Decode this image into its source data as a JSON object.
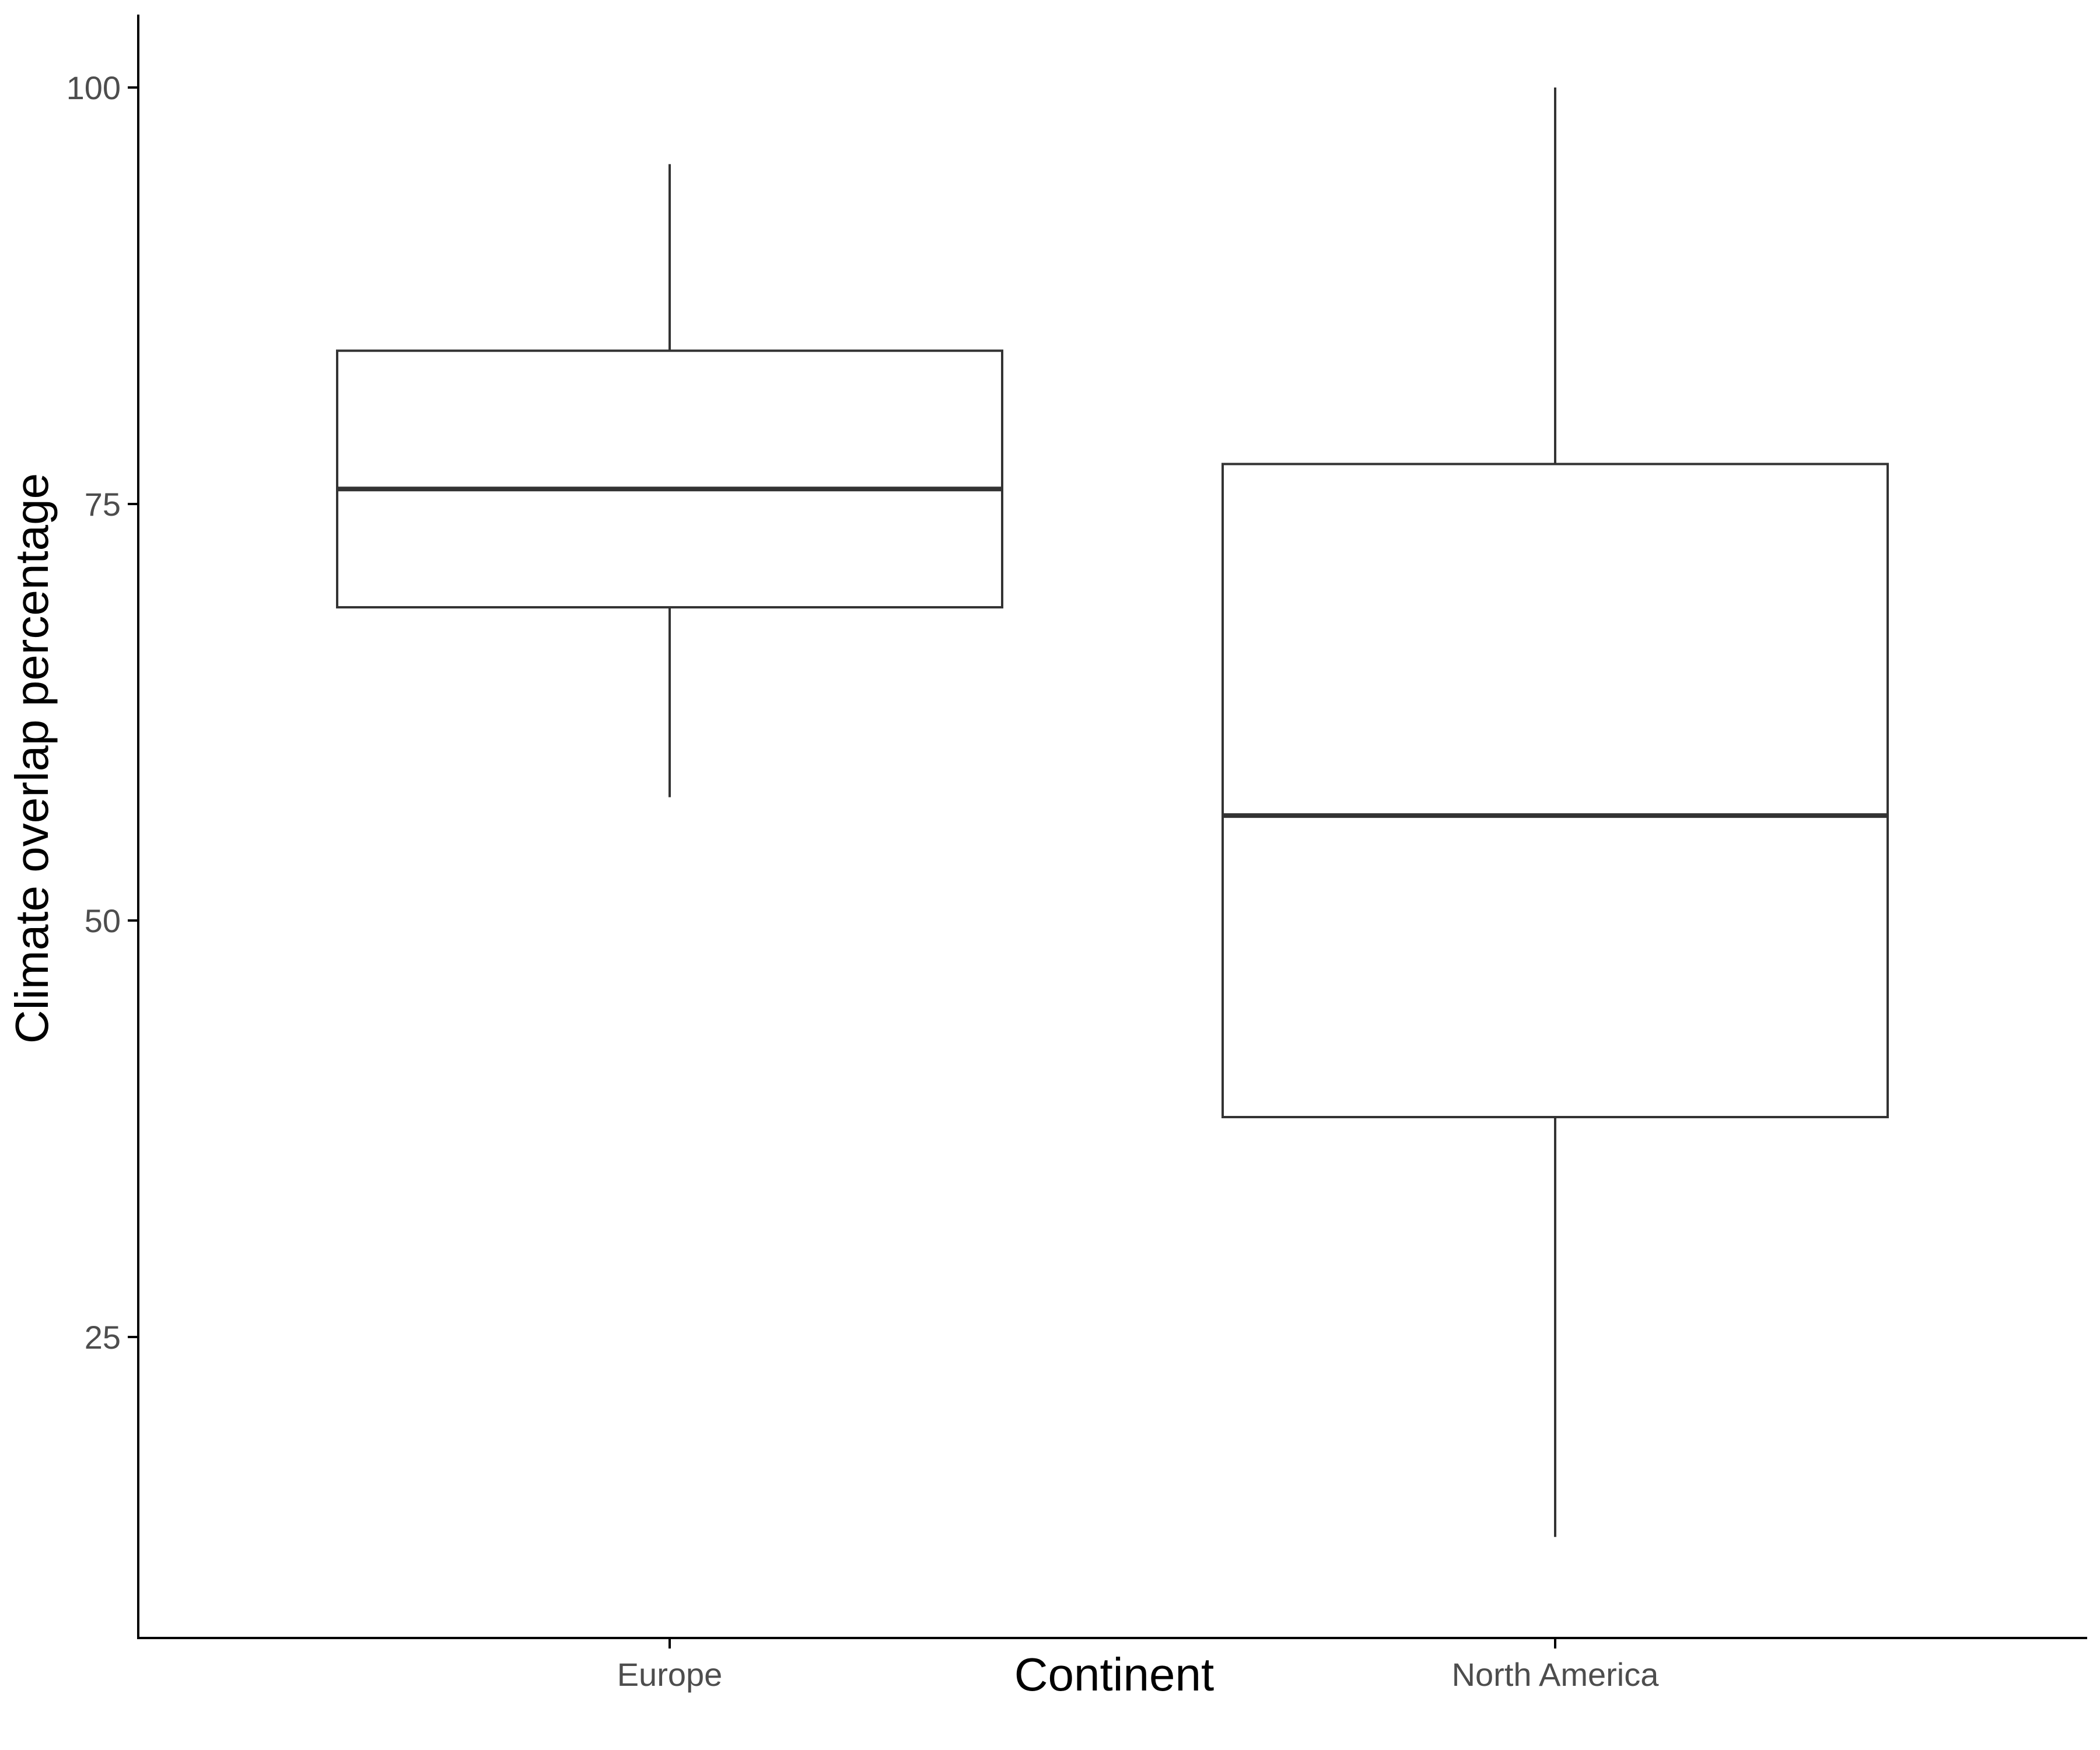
{
  "chart_data": {
    "type": "boxplot",
    "xlabel": "Continent",
    "ylabel": "Climate overlap percentage",
    "ylim": [
      7,
      105
    ],
    "yticks": [
      25,
      50,
      75,
      100
    ],
    "grid": false,
    "legend": "none",
    "categories": [
      "Europe",
      "North America"
    ],
    "boxes": [
      {
        "category": "Europe",
        "whisker_low": 57.4,
        "q1": 68.8,
        "median": 75.9,
        "q3": 84.2,
        "whisker_high": 95.4
      },
      {
        "category": "North America",
        "whisker_low": 13.0,
        "q1": 38.2,
        "median": 56.3,
        "q3": 77.4,
        "whisker_high": 100.0
      }
    ],
    "colors": {
      "box_line": "#333333",
      "axis": "#000000",
      "tick_text": "#4d4d4d",
      "title_text": "#000000",
      "fill": "#ffffff"
    }
  }
}
